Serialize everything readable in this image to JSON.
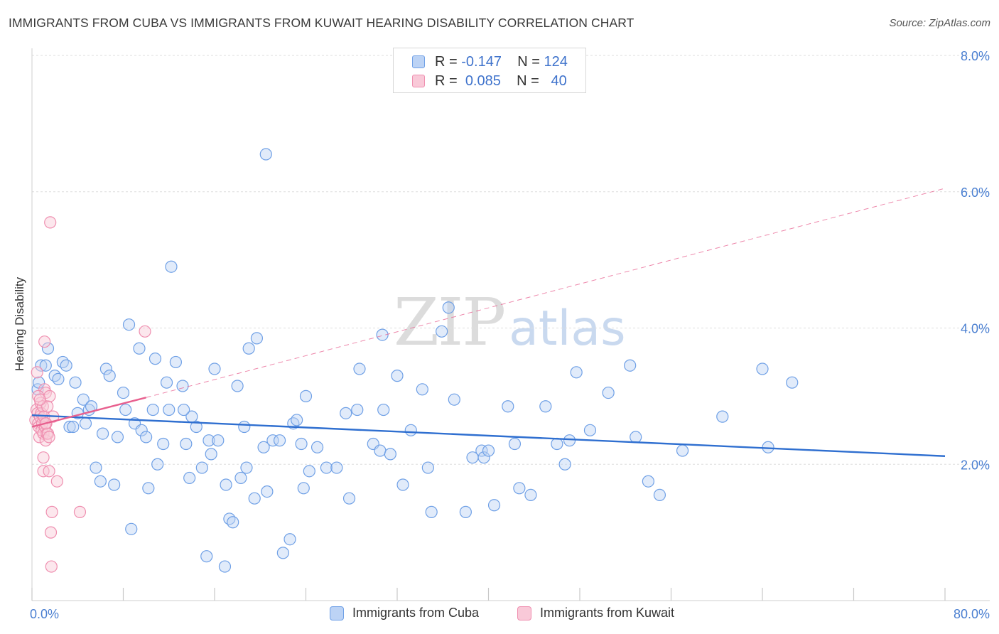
{
  "title": "IMMIGRANTS FROM CUBA VS IMMIGRANTS FROM KUWAIT HEARING DISABILITY CORRELATION CHART",
  "source": "Source: ZipAtlas.com",
  "watermark": {
    "zip": "ZIP",
    "atlas": "atlas"
  },
  "legend_top": {
    "rows": [
      {
        "r_label": "R =",
        "r_value": "-0.147",
        "n_label": "N =",
        "n_value": "124",
        "color": "#6fa0e6",
        "fill": "#bcd3f5"
      },
      {
        "r_label": "R =",
        "r_value": "0.085",
        "n_label": "N =",
        "n_value": "40",
        "color": "#ef8fb0",
        "fill": "#f9c9d8"
      }
    ]
  },
  "legend_bottom": [
    {
      "label": "Immigrants from Cuba",
      "color": "#6fa0e6",
      "fill": "#bcd3f5"
    },
    {
      "label": "Immigrants from Kuwait",
      "color": "#ef8fb0",
      "fill": "#f9c9d8"
    }
  ],
  "chart_data": {
    "type": "scatter",
    "title": "IMMIGRANTS FROM CUBA VS IMMIGRANTS FROM KUWAIT HEARING DISABILITY CORRELATION CHART",
    "xlabel": "",
    "ylabel": "Hearing Disability",
    "xlim": [
      0,
      80
    ],
    "ylim": [
      0,
      8
    ],
    "x_tick_labels": [
      "0.0%",
      "80.0%"
    ],
    "y_ticks": [
      2,
      4,
      6,
      8
    ],
    "y_tick_labels": [
      "2.0%",
      "4.0%",
      "6.0%",
      "8.0%"
    ],
    "grid": true,
    "legend_position": "top-center",
    "series": [
      {
        "name": "Immigrants from Cuba",
        "stroke": "#6fa0e6",
        "fill": "#bcd3f5",
        "trend": {
          "x": [
            0,
            80
          ],
          "y": [
            2.72,
            2.12
          ],
          "color": "#2f6fd0"
        },
        "points": [
          [
            0.5,
            3.1
          ],
          [
            0.6,
            3.2
          ],
          [
            0.8,
            3.45
          ],
          [
            1.2,
            3.45
          ],
          [
            1.4,
            3.7
          ],
          [
            2.0,
            3.3
          ],
          [
            2.3,
            3.25
          ],
          [
            2.7,
            3.5
          ],
          [
            3.0,
            3.45
          ],
          [
            3.3,
            2.55
          ],
          [
            3.6,
            2.55
          ],
          [
            3.8,
            3.2
          ],
          [
            4.0,
            2.75
          ],
          [
            4.5,
            2.95
          ],
          [
            4.7,
            2.6
          ],
          [
            5.0,
            2.8
          ],
          [
            5.2,
            2.85
          ],
          [
            5.6,
            1.95
          ],
          [
            6.0,
            1.75
          ],
          [
            6.2,
            2.45
          ],
          [
            6.5,
            3.4
          ],
          [
            6.8,
            3.3
          ],
          [
            7.2,
            1.7
          ],
          [
            7.5,
            2.4
          ],
          [
            8.0,
            3.05
          ],
          [
            8.2,
            2.8
          ],
          [
            8.5,
            4.05
          ],
          [
            8.7,
            1.05
          ],
          [
            9.0,
            2.6
          ],
          [
            9.4,
            3.7
          ],
          [
            9.6,
            2.5
          ],
          [
            10.0,
            2.4
          ],
          [
            10.2,
            1.65
          ],
          [
            10.6,
            2.8
          ],
          [
            10.8,
            3.55
          ],
          [
            11.0,
            2.0
          ],
          [
            11.5,
            2.3
          ],
          [
            11.8,
            3.2
          ],
          [
            12.0,
            2.8
          ],
          [
            12.2,
            4.9
          ],
          [
            12.6,
            3.5
          ],
          [
            13.2,
            3.15
          ],
          [
            13.5,
            2.3
          ],
          [
            13.8,
            1.8
          ],
          [
            14.0,
            2.7
          ],
          [
            14.4,
            2.55
          ],
          [
            14.9,
            1.95
          ],
          [
            15.3,
            0.65
          ],
          [
            15.5,
            2.35
          ],
          [
            15.7,
            2.15
          ],
          [
            16.0,
            3.4
          ],
          [
            16.3,
            2.35
          ],
          [
            16.9,
            0.5
          ],
          [
            17.0,
            1.7
          ],
          [
            17.3,
            1.2
          ],
          [
            17.6,
            1.15
          ],
          [
            18.0,
            3.15
          ],
          [
            18.3,
            1.8
          ],
          [
            18.6,
            2.55
          ],
          [
            18.8,
            1.95
          ],
          [
            19.0,
            3.7
          ],
          [
            19.5,
            1.5
          ],
          [
            19.7,
            3.85
          ],
          [
            20.3,
            2.25
          ],
          [
            20.6,
            1.6
          ],
          [
            20.5,
            6.55
          ],
          [
            21.1,
            2.35
          ],
          [
            21.7,
            2.35
          ],
          [
            22.0,
            0.7
          ],
          [
            22.6,
            0.9
          ],
          [
            22.9,
            2.6
          ],
          [
            23.2,
            2.65
          ],
          [
            23.6,
            2.3
          ],
          [
            23.8,
            1.65
          ],
          [
            24.0,
            3.0
          ],
          [
            24.3,
            1.9
          ],
          [
            25.0,
            2.25
          ],
          [
            25.8,
            1.95
          ],
          [
            26.7,
            1.95
          ],
          [
            27.5,
            2.75
          ],
          [
            27.8,
            1.5
          ],
          [
            28.5,
            2.8
          ],
          [
            28.7,
            3.4
          ],
          [
            29.9,
            2.3
          ],
          [
            30.5,
            2.2
          ],
          [
            30.7,
            3.9
          ],
          [
            30.8,
            2.8
          ],
          [
            31.4,
            2.15
          ],
          [
            32.0,
            3.3
          ],
          [
            32.5,
            1.7
          ],
          [
            33.2,
            2.5
          ],
          [
            34.2,
            3.1
          ],
          [
            34.7,
            1.95
          ],
          [
            35.0,
            1.3
          ],
          [
            35.9,
            3.95
          ],
          [
            36.5,
            4.3
          ],
          [
            37.0,
            2.95
          ],
          [
            38.0,
            1.3
          ],
          [
            38.6,
            2.1
          ],
          [
            39.4,
            2.2
          ],
          [
            39.6,
            2.1
          ],
          [
            40.0,
            2.2
          ],
          [
            40.5,
            1.4
          ],
          [
            41.7,
            2.85
          ],
          [
            42.3,
            2.3
          ],
          [
            42.7,
            1.65
          ],
          [
            43.7,
            1.55
          ],
          [
            45.0,
            2.85
          ],
          [
            46.0,
            2.3
          ],
          [
            46.7,
            2.0
          ],
          [
            47.1,
            2.35
          ],
          [
            47.7,
            3.35
          ],
          [
            48.9,
            2.5
          ],
          [
            50.5,
            3.05
          ],
          [
            52.4,
            3.45
          ],
          [
            52.9,
            2.4
          ],
          [
            54.0,
            1.75
          ],
          [
            55.0,
            1.55
          ],
          [
            57.0,
            2.2
          ],
          [
            60.5,
            2.7
          ],
          [
            64.0,
            3.4
          ],
          [
            64.5,
            2.25
          ],
          [
            66.6,
            3.2
          ],
          [
            13.3,
            2.8
          ]
        ]
      },
      {
        "name": "Immigrants from Kuwait",
        "stroke": "#ef8fb0",
        "fill": "#f9c9d8",
        "trend": {
          "x": [
            0,
            10
          ],
          "y": [
            2.55,
            2.98
          ],
          "color": "#e8608f",
          "ext_x": [
            10,
            80
          ],
          "ext_y": [
            2.98,
            6.05
          ]
        },
        "points": [
          [
            0.3,
            2.65
          ],
          [
            0.4,
            2.8
          ],
          [
            0.45,
            3.35
          ],
          [
            0.5,
            2.75
          ],
          [
            0.55,
            2.6
          ],
          [
            0.6,
            2.55
          ],
          [
            0.65,
            2.4
          ],
          [
            0.7,
            2.7
          ],
          [
            0.75,
            2.9
          ],
          [
            0.8,
            2.75
          ],
          [
            0.85,
            2.5
          ],
          [
            0.9,
            2.6
          ],
          [
            0.95,
            2.85
          ],
          [
            1.0,
            2.45
          ],
          [
            1.05,
            2.7
          ],
          [
            1.1,
            3.1
          ],
          [
            1.15,
            2.55
          ],
          [
            1.2,
            2.35
          ],
          [
            1.25,
            2.6
          ],
          [
            1.3,
            2.45
          ],
          [
            1.0,
            2.1
          ],
          [
            1.0,
            1.9
          ],
          [
            1.1,
            3.8
          ],
          [
            1.2,
            3.05
          ],
          [
            1.35,
            2.85
          ],
          [
            1.4,
            2.45
          ],
          [
            1.5,
            2.4
          ],
          [
            1.5,
            1.9
          ],
          [
            1.55,
            3.0
          ],
          [
            1.6,
            5.55
          ],
          [
            1.65,
            1.0
          ],
          [
            1.7,
            0.5
          ],
          [
            1.75,
            1.3
          ],
          [
            1.85,
            2.7
          ],
          [
            2.2,
            1.75
          ],
          [
            4.2,
            1.3
          ],
          [
            9.9,
            3.95
          ],
          [
            0.55,
            3.0
          ],
          [
            0.7,
            2.95
          ],
          [
            1.2,
            2.6
          ]
        ]
      }
    ]
  }
}
